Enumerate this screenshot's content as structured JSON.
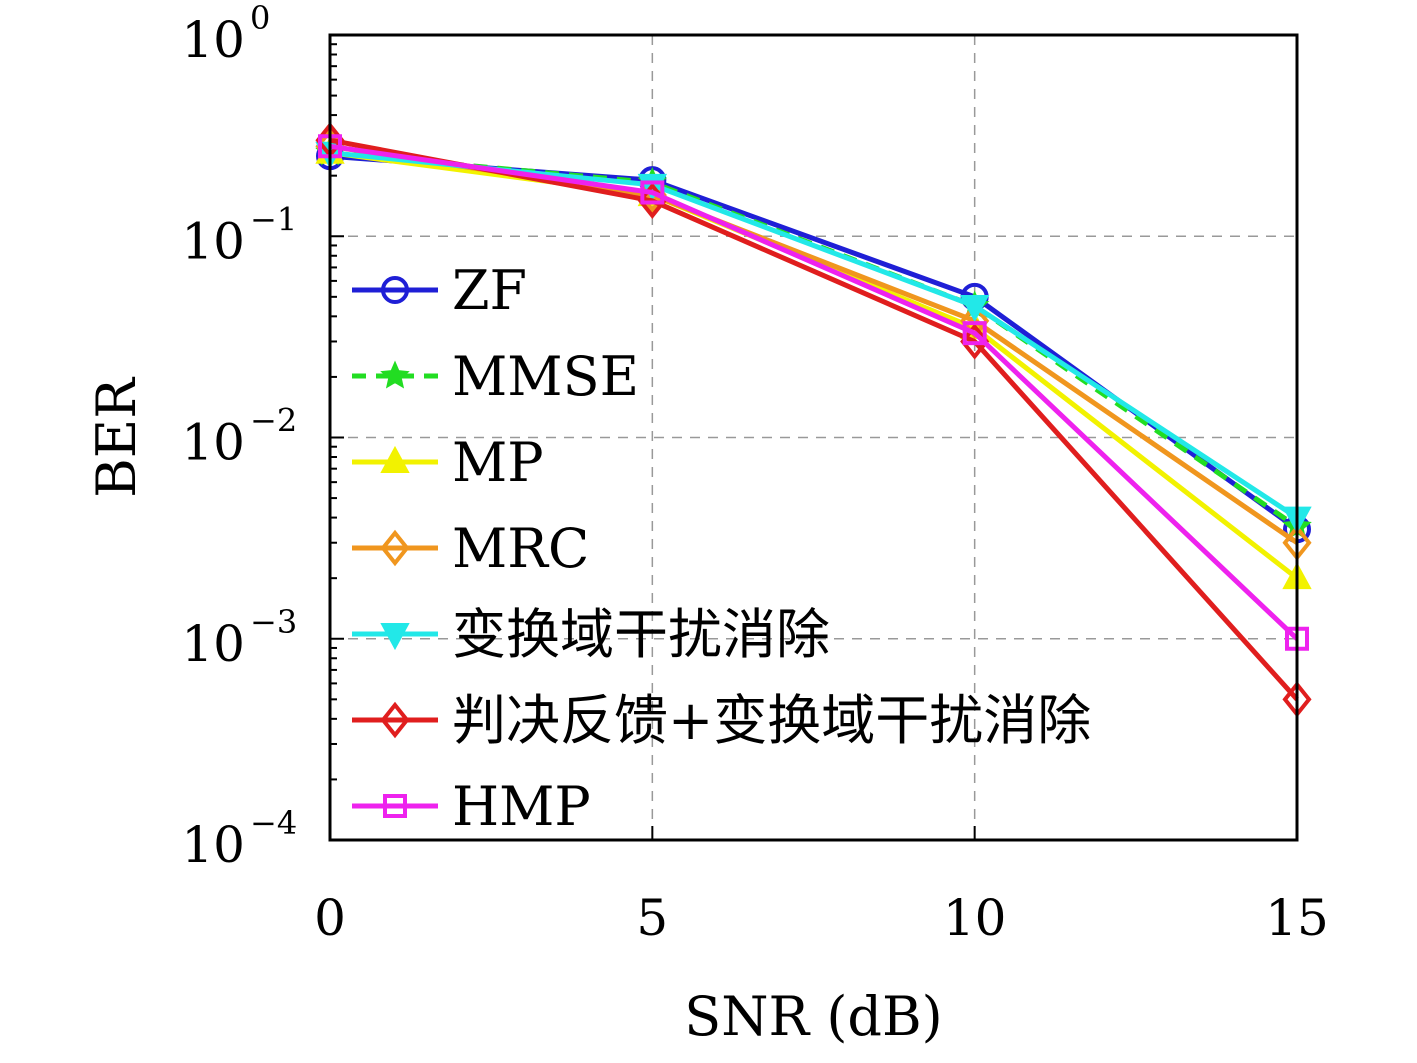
{
  "chart_data": {
    "type": "line",
    "title": "",
    "xlabel": "SNR (dB)",
    "ylabel": "BER",
    "x": [
      0,
      5,
      10,
      15
    ],
    "xlim": [
      0,
      15
    ],
    "ylim": [
      0.0001,
      1
    ],
    "yscale": "log",
    "grid": true,
    "legend_placement": "left",
    "x_tick_labels": [
      "0",
      "5",
      "10",
      "15"
    ],
    "y_tick_labels": [
      {
        "base": "10",
        "exp": "0"
      },
      {
        "base": "10",
        "exp": "−1"
      },
      {
        "base": "10",
        "exp": "−2"
      },
      {
        "base": "10",
        "exp": "−3"
      },
      {
        "base": "10",
        "exp": "−4"
      }
    ],
    "series": [
      {
        "name": "ZF",
        "color": "#1f1fd6",
        "marker": "circle",
        "dash": "solid",
        "values": [
          0.25,
          0.19,
          0.05,
          0.0035
        ]
      },
      {
        "name": "MMSE",
        "color": "#22dd22",
        "marker": "star",
        "dash": "dashed",
        "values": [
          0.26,
          0.185,
          0.045,
          0.0036
        ]
      },
      {
        "name": "MP",
        "color": "#f2f200",
        "marker": "triangle-up",
        "dash": "solid",
        "values": [
          0.26,
          0.16,
          0.035,
          0.002
        ]
      },
      {
        "name": "MRC",
        "color": "#f0961e",
        "marker": "diamond",
        "dash": "solid",
        "values": [
          0.28,
          0.16,
          0.038,
          0.003
        ]
      },
      {
        "name": "变换域干扰消除",
        "color": "#22e8e8",
        "marker": "triangle-down",
        "dash": "solid",
        "values": [
          0.26,
          0.18,
          0.045,
          0.004
        ]
      },
      {
        "name": "判决反馈+变换域干扰消除",
        "color": "#e01e1e",
        "marker": "diamond",
        "dash": "solid",
        "values": [
          0.3,
          0.15,
          0.03,
          0.0005
        ]
      },
      {
        "name": "HMP",
        "color": "#ee22ee",
        "marker": "square",
        "dash": "solid",
        "values": [
          0.28,
          0.165,
          0.033,
          0.001
        ]
      }
    ]
  }
}
